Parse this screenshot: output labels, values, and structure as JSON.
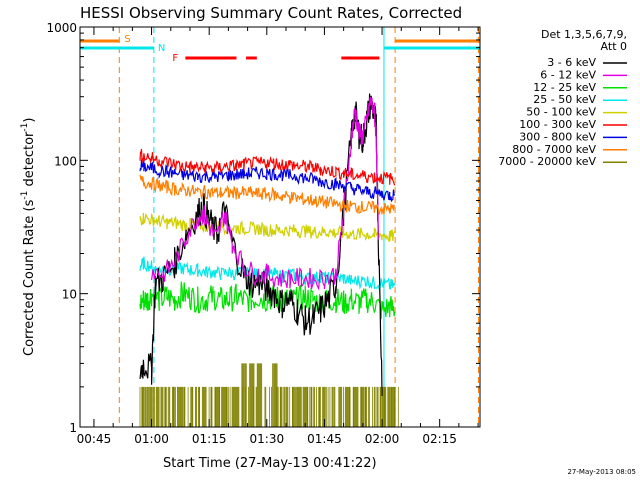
{
  "chart_data": {
    "type": "line",
    "title": "HESSI Observing Summary Count Rates, Corrected",
    "xlabel": "Start Time (27-May-13 00:41:22)",
    "ylabel_main": "Corrected Count Rate (s",
    "ylabel_sup1": "-1",
    "ylabel_mid": " detector",
    "ylabel_sup2": "-1",
    "ylabel_end": ")",
    "footer": "27-May-2013 08:05",
    "x_ticks": [
      "00:45",
      "01:00",
      "01:15",
      "01:30",
      "01:45",
      "02:00",
      "02:15"
    ],
    "x_tick_minutes": [
      45,
      60,
      75,
      90,
      105,
      120,
      135
    ],
    "xlim_minutes": [
      41.37,
      145.5
    ],
    "y_scale": "log",
    "ylim": [
      1,
      1000
    ],
    "y_tick_labels": [
      "1",
      "10",
      "100",
      "1000"
    ],
    "legend": {
      "header1": "Det 1,3,5,6,7,9,",
      "header2": "Att 0",
      "entries": [
        {
          "label": "3 - 6 keV",
          "color": "#000000"
        },
        {
          "label": "6 - 12 keV",
          "color": "#e000e0"
        },
        {
          "label": "12 - 25 keV",
          "color": "#00e000"
        },
        {
          "label": "25 - 50 keV",
          "color": "#00e8e8"
        },
        {
          "label": "50 - 100 keV",
          "color": "#d0d000"
        },
        {
          "label": "100 - 300 keV",
          "color": "#ff0000"
        },
        {
          "label": "300 - 800 keV",
          "color": "#0000e0"
        },
        {
          "label": "800 - 7000 keV",
          "color": "#ff7f00"
        },
        {
          "label": "7000 - 20000 keV",
          "color": "#808000"
        }
      ]
    },
    "series": [
      {
        "name": "3 - 6 keV",
        "color": "#000000",
        "x": [
          57,
          58,
          60,
          61,
          63,
          66,
          69,
          72,
          73.5,
          75,
          77,
          79,
          81,
          84,
          86,
          88,
          90,
          92,
          94,
          96,
          98,
          100,
          102,
          104,
          106,
          108,
          110,
          112,
          113,
          114,
          115,
          116,
          117,
          118,
          118.5,
          119,
          120
        ],
        "y": [
          2.6,
          3,
          2.7,
          12,
          13,
          17,
          28,
          40,
          45,
          35,
          28,
          42,
          24,
          14,
          12,
          12,
          11,
          10,
          8.5,
          9,
          7.5,
          6.2,
          6.5,
          7.5,
          9,
          12,
          40,
          150,
          230,
          160,
          140,
          200,
          270,
          230,
          170,
          30,
          2
        ]
      },
      {
        "name": "6 - 12 keV",
        "color": "#e000e0",
        "x": [
          60,
          63,
          66,
          69,
          72,
          73.5,
          75,
          77,
          79,
          81,
          84,
          87,
          90,
          93,
          96,
          99,
          102,
          105,
          108,
          110,
          112,
          113,
          114,
          115,
          116,
          117,
          118,
          118.5,
          119
        ],
        "y": [
          15,
          14,
          17,
          27,
          38,
          40,
          32,
          26,
          40,
          24,
          16,
          14,
          14,
          13,
          13,
          13,
          13,
          13,
          14,
          40,
          150,
          240,
          160,
          150,
          200,
          280,
          230,
          150,
          30
        ]
      },
      {
        "name": "12 - 25 keV",
        "color": "#00e000",
        "x": [
          57,
          58,
          59,
          60,
          62,
          64,
          66,
          68,
          70,
          72,
          74,
          76,
          78,
          80,
          82,
          84,
          86,
          88,
          90,
          92,
          94,
          96,
          98,
          100,
          102,
          104,
          106,
          108,
          110,
          112,
          114,
          116,
          118,
          120,
          122,
          123.3
        ],
        "y": [
          8.5,
          9,
          9,
          10,
          9,
          9.5,
          9,
          10,
          9.5,
          9,
          9,
          9.5,
          9,
          9,
          9.5,
          9,
          9,
          9.5,
          9,
          9.5,
          9,
          9,
          9,
          9.5,
          9,
          8.5,
          9,
          9,
          8.5,
          9,
          8.5,
          9,
          8.5,
          7.5,
          8,
          7.5
        ]
      },
      {
        "name": "25 - 50 keV",
        "color": "#00e8e8",
        "x": [
          57,
          58,
          60,
          62,
          64,
          66,
          68,
          70,
          72,
          74,
          76,
          78,
          80,
          82,
          84,
          86,
          88,
          90,
          92,
          94,
          96,
          98,
          100,
          102,
          104,
          106,
          108,
          110,
          112,
          114,
          116,
          118,
          120,
          122,
          123.3
        ],
        "y": [
          16,
          17,
          16,
          15,
          15.5,
          15,
          15.5,
          15,
          15,
          14.5,
          14.5,
          14,
          14.5,
          14,
          14.5,
          14,
          14,
          14,
          14,
          13.5,
          14,
          13.5,
          13,
          13,
          13.5,
          13,
          13,
          13,
          12.5,
          12.5,
          12.5,
          12,
          12,
          11.5,
          11.5
        ]
      },
      {
        "name": "50 - 100 keV",
        "color": "#d0d000",
        "x": [
          57,
          58,
          60,
          62,
          64,
          66,
          68,
          70,
          72,
          74,
          76,
          78,
          80,
          82,
          84,
          86,
          88,
          90,
          92,
          94,
          96,
          98,
          100,
          102,
          104,
          106,
          108,
          110,
          112,
          114,
          116,
          118,
          120,
          122,
          123.3
        ],
        "y": [
          36,
          37,
          36,
          35,
          34,
          34,
          33,
          33,
          33,
          32,
          32,
          32,
          31.5,
          31,
          31,
          31,
          30.5,
          30,
          30,
          30,
          30,
          29.5,
          29.5,
          29,
          29,
          29,
          28.5,
          28.5,
          28,
          28,
          28,
          27.5,
          27.5,
          27,
          27
        ]
      },
      {
        "name": "100 - 300 keV",
        "color": "#ff0000",
        "x": [
          57,
          58,
          60,
          62,
          64,
          66,
          68,
          70,
          72,
          74,
          76,
          78,
          80,
          82,
          84,
          86,
          88,
          90,
          92,
          94,
          96,
          98,
          100,
          102,
          104,
          106,
          108,
          110,
          112,
          114,
          116,
          118,
          120,
          122,
          123.3
        ],
        "y": [
          110,
          108,
          104,
          100,
          97,
          93,
          91,
          89,
          88,
          88,
          87,
          88,
          90,
          91,
          93,
          94,
          95,
          96,
          95,
          94,
          93,
          91,
          90,
          88,
          86,
          84,
          82,
          80,
          78,
          77,
          76,
          75,
          74,
          73,
          72
        ]
      },
      {
        "name": "300 - 800 keV",
        "color": "#0000e0",
        "x": [
          57,
          58,
          60,
          62,
          64,
          66,
          68,
          70,
          72,
          74,
          76,
          78,
          80,
          82,
          84,
          86,
          88,
          90,
          92,
          94,
          96,
          98,
          100,
          102,
          104,
          106,
          108,
          110,
          112,
          114,
          116,
          118,
          120,
          122,
          123.3
        ],
        "y": [
          92,
          90,
          87,
          84,
          82,
          80,
          78,
          77,
          76,
          76,
          76,
          76,
          77,
          78,
          79,
          80,
          80,
          80,
          79,
          78,
          77,
          76,
          74,
          72,
          70,
          68,
          66,
          64,
          62,
          60,
          58,
          57,
          56,
          55,
          55
        ]
      },
      {
        "name": "800 - 7000 keV",
        "color": "#ff7f00",
        "x": [
          57,
          58,
          60,
          62,
          64,
          66,
          68,
          70,
          72,
          74,
          76,
          78,
          80,
          82,
          84,
          86,
          88,
          90,
          92,
          94,
          96,
          98,
          100,
          102,
          104,
          106,
          108,
          110,
          112,
          114,
          116,
          118,
          120,
          122,
          123.3
        ],
        "y": [
          70,
          69,
          67,
          65,
          63,
          61,
          60,
          59,
          58,
          58,
          57,
          57,
          57,
          57,
          57,
          57,
          56,
          56,
          55,
          54,
          53,
          52,
          51,
          50,
          49,
          48,
          47,
          46,
          45,
          45,
          44,
          44,
          43,
          43,
          43
        ]
      },
      {
        "name": "7000 - 20000 keV",
        "color": "#808000",
        "x": [
          57,
          57.5,
          58.5,
          59.5,
          60.5,
          61.5,
          62.5,
          63.5,
          64.5,
          65.5,
          66.5,
          67.5,
          68.5,
          69.5,
          70.5,
          71.5,
          72.5,
          73.5,
          74.5,
          75.5,
          76.5,
          77.5,
          78.5,
          79.5,
          80.5,
          81.5,
          82.5,
          83.5,
          84.5,
          85.5,
          86.5,
          87.5,
          88.5,
          89.5,
          90.5,
          91.5,
          92.5,
          93.5,
          94.5,
          95.5,
          96.5,
          97.5,
          98.5,
          99.5,
          100.5,
          101.5,
          102.5,
          103.5,
          104.5,
          105.5,
          106.5,
          107.5,
          108.5,
          109.5,
          110.5,
          111.5,
          112.5,
          113.5,
          114.5,
          115.5,
          116.5,
          117.5,
          118.5,
          119.5,
          120.5,
          121.5,
          122.5,
          123.3
        ],
        "y": [
          1,
          2,
          1,
          2,
          1,
          2,
          1,
          2,
          1,
          2,
          1,
          2,
          1,
          2,
          1,
          2,
          1,
          2,
          1,
          2,
          1,
          2,
          1,
          2,
          1,
          2,
          1,
          3,
          1,
          3,
          1,
          3,
          1,
          2,
          1,
          3,
          1,
          2,
          1,
          2,
          1,
          2,
          1,
          2,
          1,
          2,
          1,
          2,
          1,
          2,
          1,
          2,
          1,
          2,
          1,
          2,
          1,
          2,
          1,
          2,
          1,
          2,
          1,
          2,
          1,
          2,
          1,
          2
        ]
      }
    ],
    "markers": {
      "S_label": "S",
      "N_label": "N",
      "F_label": "F",
      "saa_color": "#ff7f00",
      "night_color": "#00e8e8",
      "flare_color": "#ff0000",
      "saa_intervals_minutes": [
        [
          41.37,
          51.6
        ],
        [
          123.4,
          145.5
        ]
      ],
      "night_intervals_minutes": [
        [
          41.37,
          60.6
        ],
        [
          120.5,
          145.5
        ]
      ],
      "flare_intervals_minutes": [
        [
          68.8,
          82.1
        ],
        [
          84.6,
          87.4
        ],
        [
          109.4,
          119.3
        ]
      ],
      "saa_dashed_minutes": [
        51.6,
        123.4,
        145.1
      ],
      "night_dashed_minutes": [
        60.6,
        120.5
      ]
    }
  }
}
